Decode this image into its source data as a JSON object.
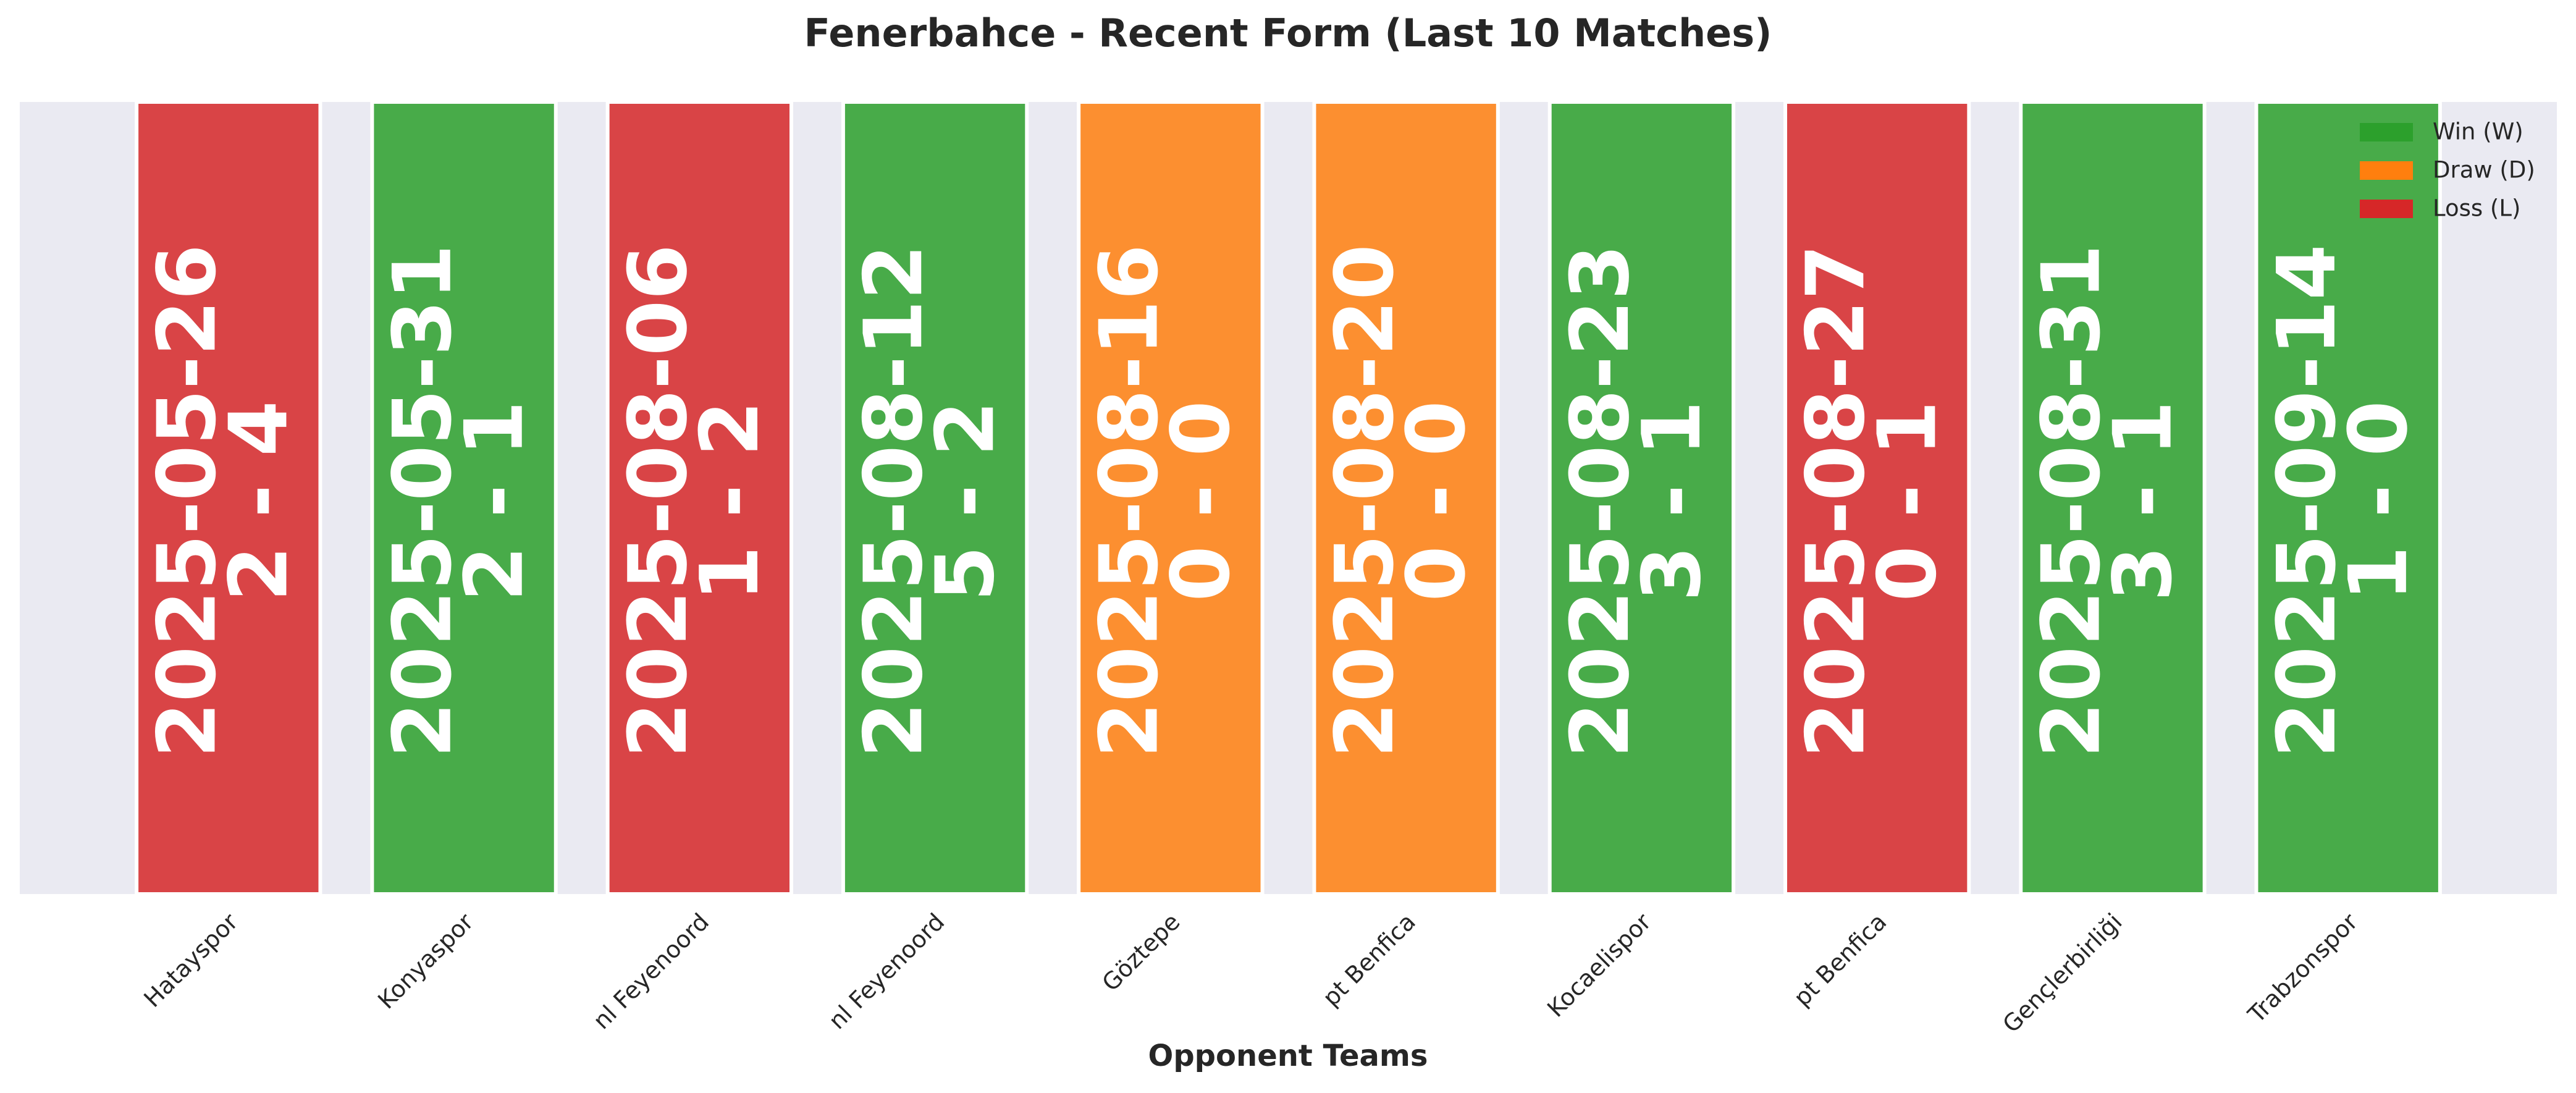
{
  "chart_data": {
    "type": "bar",
    "title": "Fenerbahce - Recent Form (Last 10 Matches)",
    "xlabel": "Opponent Teams",
    "categories": [
      "Hatayspor",
      "Konyaspor",
      "nl Feyenoord",
      "nl Feyenoord",
      "Göztepe",
      "pt Benfica",
      "Kocaelispor",
      "pt Benfica",
      "Gençlerbirliği",
      "Trabzonspor"
    ],
    "dates": [
      "2025-05-26",
      "2025-05-31",
      "2025-08-06",
      "2025-08-12",
      "2025-08-16",
      "2025-08-20",
      "2025-08-23",
      "2025-08-27",
      "2025-08-31",
      "2025-09-14"
    ],
    "scores": [
      "2 - 4",
      "2 - 1",
      "1 - 2",
      "5 - 2",
      "0 - 0",
      "0 - 0",
      "3 - 1",
      "0 - 1",
      "3 - 1",
      "1 - 0"
    ],
    "series": [
      {
        "name": "Win (W)",
        "color": "#2ca02c",
        "values": [
          null,
          1,
          null,
          1,
          null,
          null,
          1,
          null,
          1,
          1
        ]
      },
      {
        "name": "Draw (D)",
        "color": "#ff7f0e",
        "values": [
          null,
          null,
          null,
          null,
          1,
          1,
          null,
          null,
          null,
          null
        ]
      },
      {
        "name": "Loss (L)",
        "color": "#d62728",
        "values": [
          1,
          null,
          1,
          null,
          null,
          null,
          null,
          1,
          null,
          null
        ]
      }
    ],
    "ylim": [
      0,
      1
    ],
    "legend": "upper right"
  }
}
